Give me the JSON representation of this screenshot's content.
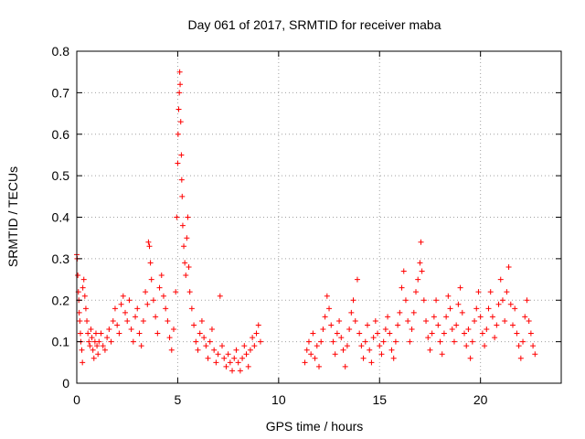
{
  "chart_data": {
    "type": "scatter",
    "title": "Day 061 of 2017, SRMTID for receiver maba",
    "xlabel": "GPS time / hours",
    "ylabel": "SRMTID / TECUs",
    "xlim": [
      0,
      24
    ],
    "ylim": [
      0,
      0.8
    ],
    "xticks": [
      0,
      5,
      10,
      15,
      20
    ],
    "xtick_labels": [
      "0",
      "5",
      "10",
      "15",
      "20"
    ],
    "yticks": [
      0,
      0.1,
      0.2,
      0.3,
      0.4,
      0.5,
      0.6,
      0.7,
      0.8
    ],
    "ytick_labels": [
      "0",
      "0.1",
      "0.2",
      "0.3",
      "0.4",
      "0.5",
      "0.6",
      "0.7",
      "0.8"
    ],
    "grid": true,
    "marker": "plus",
    "color": "#ff0000",
    "series": [
      {
        "name": "SRMTID",
        "points": [
          [
            0.0,
            0.31
          ],
          [
            0.02,
            0.3
          ],
          [
            0.05,
            0.26
          ],
          [
            0.08,
            0.22
          ],
          [
            0.1,
            0.2
          ],
          [
            0.12,
            0.17
          ],
          [
            0.15,
            0.15
          ],
          [
            0.18,
            0.12
          ],
          [
            0.2,
            0.1
          ],
          [
            0.25,
            0.08
          ],
          [
            0.28,
            0.05
          ],
          [
            0.3,
            0.23
          ],
          [
            0.35,
            0.25
          ],
          [
            0.4,
            0.21
          ],
          [
            0.45,
            0.18
          ],
          [
            0.5,
            0.15
          ],
          [
            0.55,
            0.12
          ],
          [
            0.6,
            0.1
          ],
          [
            0.65,
            0.09
          ],
          [
            0.7,
            0.13
          ],
          [
            0.75,
            0.11
          ],
          [
            0.8,
            0.08
          ],
          [
            0.85,
            0.06
          ],
          [
            0.9,
            0.1
          ],
          [
            0.95,
            0.12
          ],
          [
            1.0,
            0.09
          ],
          [
            1.05,
            0.07
          ],
          [
            1.1,
            0.1
          ],
          [
            1.2,
            0.12
          ],
          [
            1.3,
            0.09
          ],
          [
            1.4,
            0.08
          ],
          [
            1.5,
            0.11
          ],
          [
            1.6,
            0.13
          ],
          [
            1.7,
            0.1
          ],
          [
            1.8,
            0.15
          ],
          [
            1.9,
            0.18
          ],
          [
            2.0,
            0.14
          ],
          [
            2.1,
            0.12
          ],
          [
            2.2,
            0.19
          ],
          [
            2.3,
            0.21
          ],
          [
            2.4,
            0.17
          ],
          [
            2.5,
            0.15
          ],
          [
            2.6,
            0.2
          ],
          [
            2.7,
            0.13
          ],
          [
            2.8,
            0.1
          ],
          [
            2.9,
            0.16
          ],
          [
            3.0,
            0.18
          ],
          [
            3.1,
            0.12
          ],
          [
            3.2,
            0.09
          ],
          [
            3.3,
            0.15
          ],
          [
            3.4,
            0.22
          ],
          [
            3.5,
            0.19
          ],
          [
            3.55,
            0.34
          ],
          [
            3.6,
            0.33
          ],
          [
            3.65,
            0.29
          ],
          [
            3.7,
            0.25
          ],
          [
            3.8,
            0.2
          ],
          [
            3.9,
            0.16
          ],
          [
            4.0,
            0.12
          ],
          [
            4.1,
            0.23
          ],
          [
            4.2,
            0.26
          ],
          [
            4.3,
            0.21
          ],
          [
            4.4,
            0.18
          ],
          [
            4.5,
            0.15
          ],
          [
            4.6,
            0.11
          ],
          [
            4.7,
            0.08
          ],
          [
            4.8,
            0.13
          ],
          [
            4.9,
            0.22
          ],
          [
            4.95,
            0.4
          ],
          [
            5.0,
            0.53
          ],
          [
            5.02,
            0.6
          ],
          [
            5.05,
            0.66
          ],
          [
            5.08,
            0.7
          ],
          [
            5.1,
            0.75
          ],
          [
            5.12,
            0.72
          ],
          [
            5.15,
            0.63
          ],
          [
            5.18,
            0.55
          ],
          [
            5.2,
            0.49
          ],
          [
            5.22,
            0.45
          ],
          [
            5.25,
            0.38
          ],
          [
            5.3,
            0.33
          ],
          [
            5.35,
            0.29
          ],
          [
            5.4,
            0.26
          ],
          [
            5.45,
            0.35
          ],
          [
            5.5,
            0.4
          ],
          [
            5.55,
            0.28
          ],
          [
            5.6,
            0.22
          ],
          [
            5.7,
            0.18
          ],
          [
            5.8,
            0.14
          ],
          [
            5.9,
            0.1
          ],
          [
            6.0,
            0.08
          ],
          [
            6.1,
            0.12
          ],
          [
            6.2,
            0.15
          ],
          [
            6.3,
            0.11
          ],
          [
            6.4,
            0.09
          ],
          [
            6.5,
            0.06
          ],
          [
            6.6,
            0.1
          ],
          [
            6.7,
            0.13
          ],
          [
            6.8,
            0.08
          ],
          [
            6.9,
            0.05
          ],
          [
            7.0,
            0.07
          ],
          [
            7.1,
            0.21
          ],
          [
            7.2,
            0.09
          ],
          [
            7.3,
            0.06
          ],
          [
            7.4,
            0.04
          ],
          [
            7.5,
            0.07
          ],
          [
            7.6,
            0.05
          ],
          [
            7.7,
            0.03
          ],
          [
            7.8,
            0.06
          ],
          [
            7.9,
            0.08
          ],
          [
            8.0,
            0.05
          ],
          [
            8.1,
            0.03
          ],
          [
            8.2,
            0.06
          ],
          [
            8.3,
            0.09
          ],
          [
            8.4,
            0.07
          ],
          [
            8.5,
            0.04
          ],
          [
            8.6,
            0.08
          ],
          [
            8.7,
            0.11
          ],
          [
            8.8,
            0.09
          ],
          [
            8.9,
            0.12
          ],
          [
            9.0,
            0.14
          ],
          [
            9.1,
            0.1
          ],
          [
            11.3,
            0.05
          ],
          [
            11.4,
            0.08
          ],
          [
            11.5,
            0.1
          ],
          [
            11.6,
            0.07
          ],
          [
            11.7,
            0.12
          ],
          [
            11.8,
            0.06
          ],
          [
            11.9,
            0.09
          ],
          [
            12.0,
            0.04
          ],
          [
            12.1,
            0.1
          ],
          [
            12.2,
            0.13
          ],
          [
            12.3,
            0.16
          ],
          [
            12.4,
            0.21
          ],
          [
            12.5,
            0.18
          ],
          [
            12.6,
            0.14
          ],
          [
            12.7,
            0.1
          ],
          [
            12.8,
            0.07
          ],
          [
            12.9,
            0.12
          ],
          [
            13.0,
            0.15
          ],
          [
            13.1,
            0.11
          ],
          [
            13.2,
            0.08
          ],
          [
            13.3,
            0.04
          ],
          [
            13.4,
            0.09
          ],
          [
            13.5,
            0.13
          ],
          [
            13.6,
            0.17
          ],
          [
            13.7,
            0.2
          ],
          [
            13.8,
            0.15
          ],
          [
            13.9,
            0.25
          ],
          [
            14.0,
            0.12
          ],
          [
            14.1,
            0.09
          ],
          [
            14.2,
            0.06
          ],
          [
            14.3,
            0.1
          ],
          [
            14.4,
            0.14
          ],
          [
            14.5,
            0.08
          ],
          [
            14.6,
            0.05
          ],
          [
            14.7,
            0.11
          ],
          [
            14.8,
            0.15
          ],
          [
            14.9,
            0.12
          ],
          [
            15.0,
            0.09
          ],
          [
            15.1,
            0.07
          ],
          [
            15.2,
            0.1
          ],
          [
            15.3,
            0.13
          ],
          [
            15.4,
            0.16
          ],
          [
            15.5,
            0.12
          ],
          [
            15.6,
            0.08
          ],
          [
            15.7,
            0.06
          ],
          [
            15.8,
            0.1
          ],
          [
            15.9,
            0.14
          ],
          [
            16.0,
            0.17
          ],
          [
            16.1,
            0.23
          ],
          [
            16.2,
            0.27
          ],
          [
            16.3,
            0.2
          ],
          [
            16.4,
            0.15
          ],
          [
            16.5,
            0.1
          ],
          [
            16.6,
            0.13
          ],
          [
            16.7,
            0.17
          ],
          [
            16.8,
            0.22
          ],
          [
            16.9,
            0.25
          ],
          [
            17.0,
            0.29
          ],
          [
            17.05,
            0.34
          ],
          [
            17.1,
            0.27
          ],
          [
            17.2,
            0.2
          ],
          [
            17.3,
            0.15
          ],
          [
            17.4,
            0.11
          ],
          [
            17.5,
            0.08
          ],
          [
            17.6,
            0.12
          ],
          [
            17.7,
            0.16
          ],
          [
            17.8,
            0.2
          ],
          [
            17.9,
            0.14
          ],
          [
            18.0,
            0.1
          ],
          [
            18.1,
            0.07
          ],
          [
            18.2,
            0.12
          ],
          [
            18.3,
            0.16
          ],
          [
            18.4,
            0.21
          ],
          [
            18.5,
            0.18
          ],
          [
            18.6,
            0.13
          ],
          [
            18.7,
            0.1
          ],
          [
            18.8,
            0.14
          ],
          [
            18.9,
            0.19
          ],
          [
            19.0,
            0.23
          ],
          [
            19.1,
            0.17
          ],
          [
            19.2,
            0.12
          ],
          [
            19.3,
            0.09
          ],
          [
            19.4,
            0.13
          ],
          [
            19.5,
            0.06
          ],
          [
            19.6,
            0.1
          ],
          [
            19.7,
            0.15
          ],
          [
            19.8,
            0.18
          ],
          [
            19.9,
            0.22
          ],
          [
            20.0,
            0.16
          ],
          [
            20.1,
            0.12
          ],
          [
            20.2,
            0.09
          ],
          [
            20.3,
            0.13
          ],
          [
            20.4,
            0.18
          ],
          [
            20.5,
            0.22
          ],
          [
            20.6,
            0.16
          ],
          [
            20.7,
            0.11
          ],
          [
            20.8,
            0.14
          ],
          [
            20.9,
            0.19
          ],
          [
            21.0,
            0.25
          ],
          [
            21.1,
            0.2
          ],
          [
            21.2,
            0.15
          ],
          [
            21.3,
            0.22
          ],
          [
            21.4,
            0.28
          ],
          [
            21.5,
            0.19
          ],
          [
            21.6,
            0.14
          ],
          [
            21.7,
            0.18
          ],
          [
            21.8,
            0.12
          ],
          [
            21.9,
            0.09
          ],
          [
            22.0,
            0.06
          ],
          [
            22.1,
            0.1
          ],
          [
            22.2,
            0.16
          ],
          [
            22.3,
            0.2
          ],
          [
            22.4,
            0.15
          ],
          [
            22.5,
            0.12
          ],
          [
            22.6,
            0.09
          ],
          [
            22.7,
            0.07
          ]
        ]
      }
    ]
  }
}
